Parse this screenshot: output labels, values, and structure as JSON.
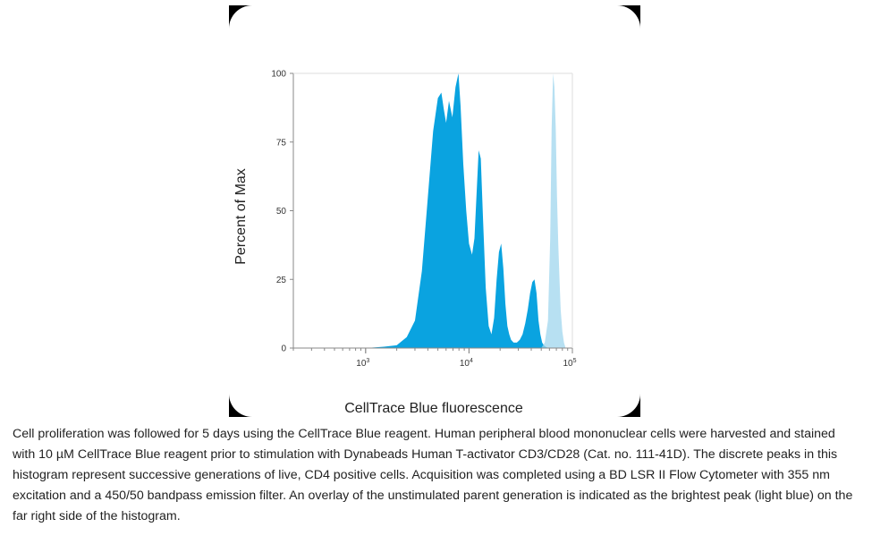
{
  "caption": "Cell proliferation was followed for 5 days using the CellTrace Blue reagent. Human peripheral blood mononuclear cells were harvested and stained with 10 µM CellTrace Blue reagent prior to stimulation with Dynabeads Human T-activator CD3/CD28 (Cat. no. 111-41D). The discrete peaks in this histogram represent successive generations of live, CD4 positive cells. Acquisition was completed using a BD LSR II Flow Cytometer with 355 nm excitation and a 450/50 bandpass emission filter. An overlay of the unstimulated parent generation is indicated as the brightest peak (light blue) on the far right side of the histogram.",
  "colors": {
    "stimulated_fill": "#0aa3e0",
    "parent_fill": "#9fd6ee",
    "axis": "#888888",
    "frame_background": "#000000"
  },
  "chart_data": {
    "type": "area",
    "xlabel": "CellTrace Blue fluorescence",
    "ylabel": "Percent of Max",
    "x_scale": "log",
    "xlim": [
      200,
      100000
    ],
    "ylim": [
      0,
      100
    ],
    "x_ticks": [
      {
        "value": 1000,
        "base": "10",
        "exp": "3"
      },
      {
        "value": 10000,
        "base": "10",
        "exp": "4"
      },
      {
        "value": 100000,
        "base": "10",
        "exp": "5"
      }
    ],
    "y_ticks": [
      {
        "value": 0,
        "label": "0"
      },
      {
        "value": 25,
        "label": "25"
      },
      {
        "value": 50,
        "label": "50"
      },
      {
        "value": 75,
        "label": "75"
      },
      {
        "value": 100,
        "label": "100"
      }
    ],
    "grid": false,
    "legend": "none",
    "series": [
      {
        "key": "stimulated",
        "x": [
          1000,
          1500,
          2000,
          2500,
          3000,
          3500,
          4000,
          4500,
          5000,
          5400,
          5700,
          6000,
          6400,
          6900,
          7400,
          7900,
          8300,
          8800,
          9400,
          10000,
          10700,
          11300,
          11800,
          12400,
          13000,
          13700,
          14500,
          15500,
          16500,
          17500,
          18500,
          19500,
          20500,
          21500,
          22500,
          23500,
          24500,
          25500,
          27000,
          29000,
          31000,
          33000,
          35000,
          37000,
          39000,
          41000,
          43000,
          45000,
          47000,
          49000,
          51000,
          53000,
          55000,
          57000,
          60000,
          65000
        ],
        "y": [
          0,
          0.5,
          1,
          4,
          10,
          28,
          55,
          79,
          91,
          93,
          87,
          82,
          90,
          84,
          95,
          100,
          88,
          67,
          50,
          38,
          34,
          40,
          55,
          72,
          69,
          46,
          22,
          8,
          5,
          11,
          25,
          35,
          38,
          29,
          16,
          8,
          5,
          3,
          2,
          2,
          3,
          5,
          9,
          14,
          20,
          24,
          25,
          20,
          10,
          5,
          2,
          1,
          0.5,
          0.2,
          0,
          0
        ]
      },
      {
        "key": "unstimulated_parent",
        "x": [
          50000,
          54000,
          58000,
          61000,
          63000,
          65000,
          67000,
          69000,
          71000,
          73000,
          75000,
          77000,
          80000,
          83000,
          86000
        ],
        "y": [
          0,
          2,
          10,
          40,
          80,
          100,
          95,
          80,
          55,
          38,
          25,
          14,
          6,
          2,
          0
        ]
      }
    ]
  }
}
